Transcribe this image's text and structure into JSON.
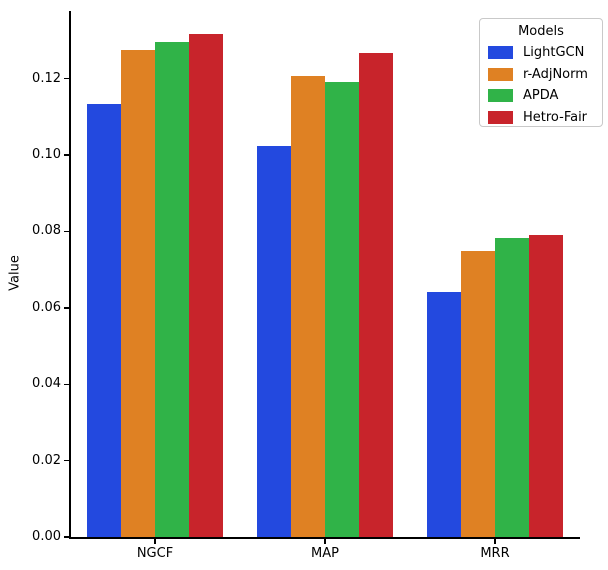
{
  "chart_data": {
    "type": "bar",
    "title": "",
    "xlabel": "",
    "ylabel": "Value",
    "categories": [
      "NGCF",
      "MAP",
      "MRR"
    ],
    "series": [
      {
        "name": "LightGCN",
        "color": "#2349df",
        "values": [
          0.1135,
          0.1025,
          0.0641
        ]
      },
      {
        "name": "r-AdjNorm",
        "color": "#df8123",
        "values": [
          0.1276,
          0.1207,
          0.0749
        ]
      },
      {
        "name": "APDA",
        "color": "#30b348",
        "values": [
          0.1295,
          0.1192,
          0.0784
        ]
      },
      {
        "name": "Hetro-Fair",
        "color": "#c8242b",
        "values": [
          0.1317,
          0.1268,
          0.0792
        ]
      }
    ],
    "ylim": [
      0,
      0.138
    ],
    "yticks": [
      0.0,
      0.02,
      0.04,
      0.06,
      0.08,
      0.1,
      0.12
    ],
    "ytick_format_decimals": 2,
    "grid": false,
    "legend": {
      "title": "Models",
      "position": "upper right"
    }
  }
}
